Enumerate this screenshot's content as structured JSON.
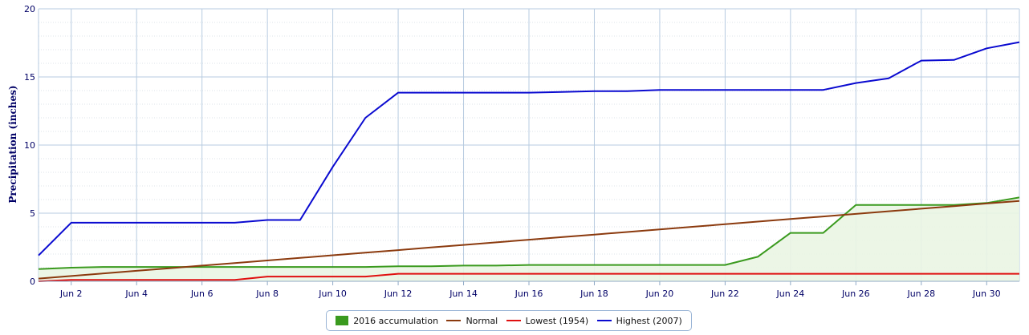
{
  "chart_data": {
    "type": "line",
    "title": "",
    "xlabel": "",
    "ylabel": "Precipitation (inches)",
    "ylim": [
      0,
      20
    ],
    "yticks": [
      0,
      5,
      10,
      15,
      20
    ],
    "xlim": [
      1,
      31
    ],
    "x": [
      1,
      2,
      3,
      4,
      5,
      6,
      7,
      8,
      9,
      10,
      11,
      12,
      13,
      14,
      15,
      16,
      17,
      18,
      19,
      20,
      21,
      22,
      23,
      24,
      25,
      26,
      27,
      28,
      29,
      30,
      31
    ],
    "xtick_labels": [
      "Jun 2",
      "Jun 4",
      "Jun 6",
      "Jun 8",
      "Jun 10",
      "Jun 12",
      "Jun 14",
      "Jun 16",
      "Jun 18",
      "Jun 20",
      "Jun 22",
      "Jun 24",
      "Jun 26",
      "Jun 28",
      "Jun 30"
    ],
    "xtick_values": [
      2,
      4,
      6,
      8,
      10,
      12,
      14,
      16,
      18,
      20,
      22,
      24,
      26,
      28,
      30
    ],
    "grid": true,
    "legend_position": "bottom-center",
    "series": [
      {
        "name": "2016 accumulation",
        "style": "area",
        "color": "#3a9a1e",
        "fill": "#eaf5e3",
        "values": [
          0.9,
          1.0,
          1.05,
          1.05,
          1.05,
          1.05,
          1.05,
          1.05,
          1.05,
          1.05,
          1.05,
          1.1,
          1.1,
          1.15,
          1.15,
          1.2,
          1.2,
          1.2,
          1.2,
          1.2,
          1.2,
          1.2,
          1.8,
          3.55,
          3.55,
          5.6,
          5.6,
          5.6,
          5.6,
          5.75,
          6.15
        ]
      },
      {
        "name": "Normal",
        "style": "line",
        "color": "#8b3a0e",
        "values": [
          0.2,
          0.39,
          0.58,
          0.77,
          0.96,
          1.15,
          1.34,
          1.53,
          1.72,
          1.91,
          2.1,
          2.29,
          2.48,
          2.67,
          2.86,
          3.05,
          3.24,
          3.43,
          3.62,
          3.81,
          4.0,
          4.19,
          4.38,
          4.57,
          4.76,
          4.95,
          5.14,
          5.33,
          5.52,
          5.71,
          5.9
        ]
      },
      {
        "name": "Lowest (1954)",
        "style": "line",
        "color": "#e01010",
        "values": [
          0.0,
          0.1,
          0.1,
          0.1,
          0.1,
          0.1,
          0.1,
          0.35,
          0.35,
          0.35,
          0.35,
          0.55,
          0.55,
          0.55,
          0.55,
          0.55,
          0.55,
          0.55,
          0.55,
          0.55,
          0.55,
          0.55,
          0.55,
          0.55,
          0.55,
          0.55,
          0.55,
          0.55,
          0.55,
          0.55,
          0.55
        ]
      },
      {
        "name": "Highest (2007)",
        "style": "line",
        "color": "#0a0ad0",
        "values": [
          1.9,
          4.3,
          4.3,
          4.3,
          4.3,
          4.3,
          4.3,
          4.5,
          4.5,
          8.4,
          12.0,
          13.85,
          13.85,
          13.85,
          13.85,
          13.85,
          13.9,
          13.95,
          13.95,
          14.05,
          14.05,
          14.05,
          14.05,
          14.05,
          14.05,
          14.55,
          14.9,
          16.2,
          16.25,
          17.1,
          17.55
        ]
      }
    ]
  }
}
